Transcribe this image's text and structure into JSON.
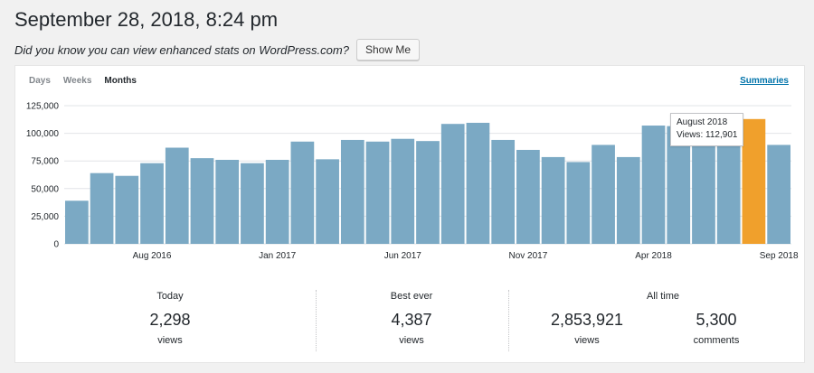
{
  "header": {
    "title": "September 28, 2018, 8:24 pm",
    "promo_text": "Did you know you can view enhanced stats on WordPress.com?",
    "promo_button": "Show Me"
  },
  "tabs": [
    {
      "label": "Days",
      "active": false
    },
    {
      "label": "Weeks",
      "active": false
    },
    {
      "label": "Months",
      "active": true
    }
  ],
  "summaries_link": "Summaries",
  "colors": {
    "bar": "#7ba9c4",
    "highlight": "#f0a02c",
    "grid": "#e2e4e7"
  },
  "chart_data": {
    "type": "bar",
    "categories": [
      "May 2016",
      "Jun 2016",
      "Jul 2016",
      "Aug 2016",
      "Sep 2016",
      "Oct 2016",
      "Nov 2016",
      "Dec 2016",
      "Jan 2017",
      "Feb 2017",
      "Mar 2017",
      "Apr 2017",
      "May 2017",
      "Jun 2017",
      "Jul 2017",
      "Aug 2017",
      "Sep 2017",
      "Oct 2017",
      "Nov 2017",
      "Dec 2017",
      "Jan 2018",
      "Feb 2018",
      "Mar 2018",
      "Apr 2018",
      "May 2018",
      "Jun 2018",
      "Jul 2018",
      "August 2018",
      "Sep 2018"
    ],
    "values": [
      39000,
      64000,
      61500,
      73000,
      87000,
      77500,
      76000,
      73000,
      76000,
      92500,
      76500,
      94000,
      92500,
      95000,
      93000,
      108500,
      109500,
      94000,
      85000,
      78500,
      74000,
      89500,
      78500,
      107000,
      106500,
      101000,
      100000,
      112901,
      89500
    ],
    "highlight_index": 27,
    "xtick_labels": [
      {
        "index": 3,
        "label": "Aug 2016"
      },
      {
        "index": 8,
        "label": "Jan 2017"
      },
      {
        "index": 13,
        "label": "Jun 2017"
      },
      {
        "index": 18,
        "label": "Nov 2017"
      },
      {
        "index": 23,
        "label": "Apr 2018"
      },
      {
        "index": 28,
        "label": "Sep 2018"
      }
    ],
    "yticks": [
      0,
      25000,
      50000,
      75000,
      100000,
      125000
    ],
    "ytick_labels": [
      "0",
      "25,000",
      "50,000",
      "75,000",
      "100,000",
      "125,000"
    ],
    "ylim": [
      0,
      125000
    ],
    "grid": true,
    "tooltip": {
      "title": "August 2018",
      "text": "Views: 112,901"
    }
  },
  "stats": {
    "today": {
      "label": "Today",
      "value": "2,298",
      "unit": "views"
    },
    "best_ever": {
      "label": "Best ever",
      "value": "4,387",
      "unit": "views"
    },
    "all_time": {
      "label": "All time",
      "views_value": "2,853,921",
      "views_unit": "views",
      "comments_value": "5,300",
      "comments_unit": "comments"
    }
  }
}
